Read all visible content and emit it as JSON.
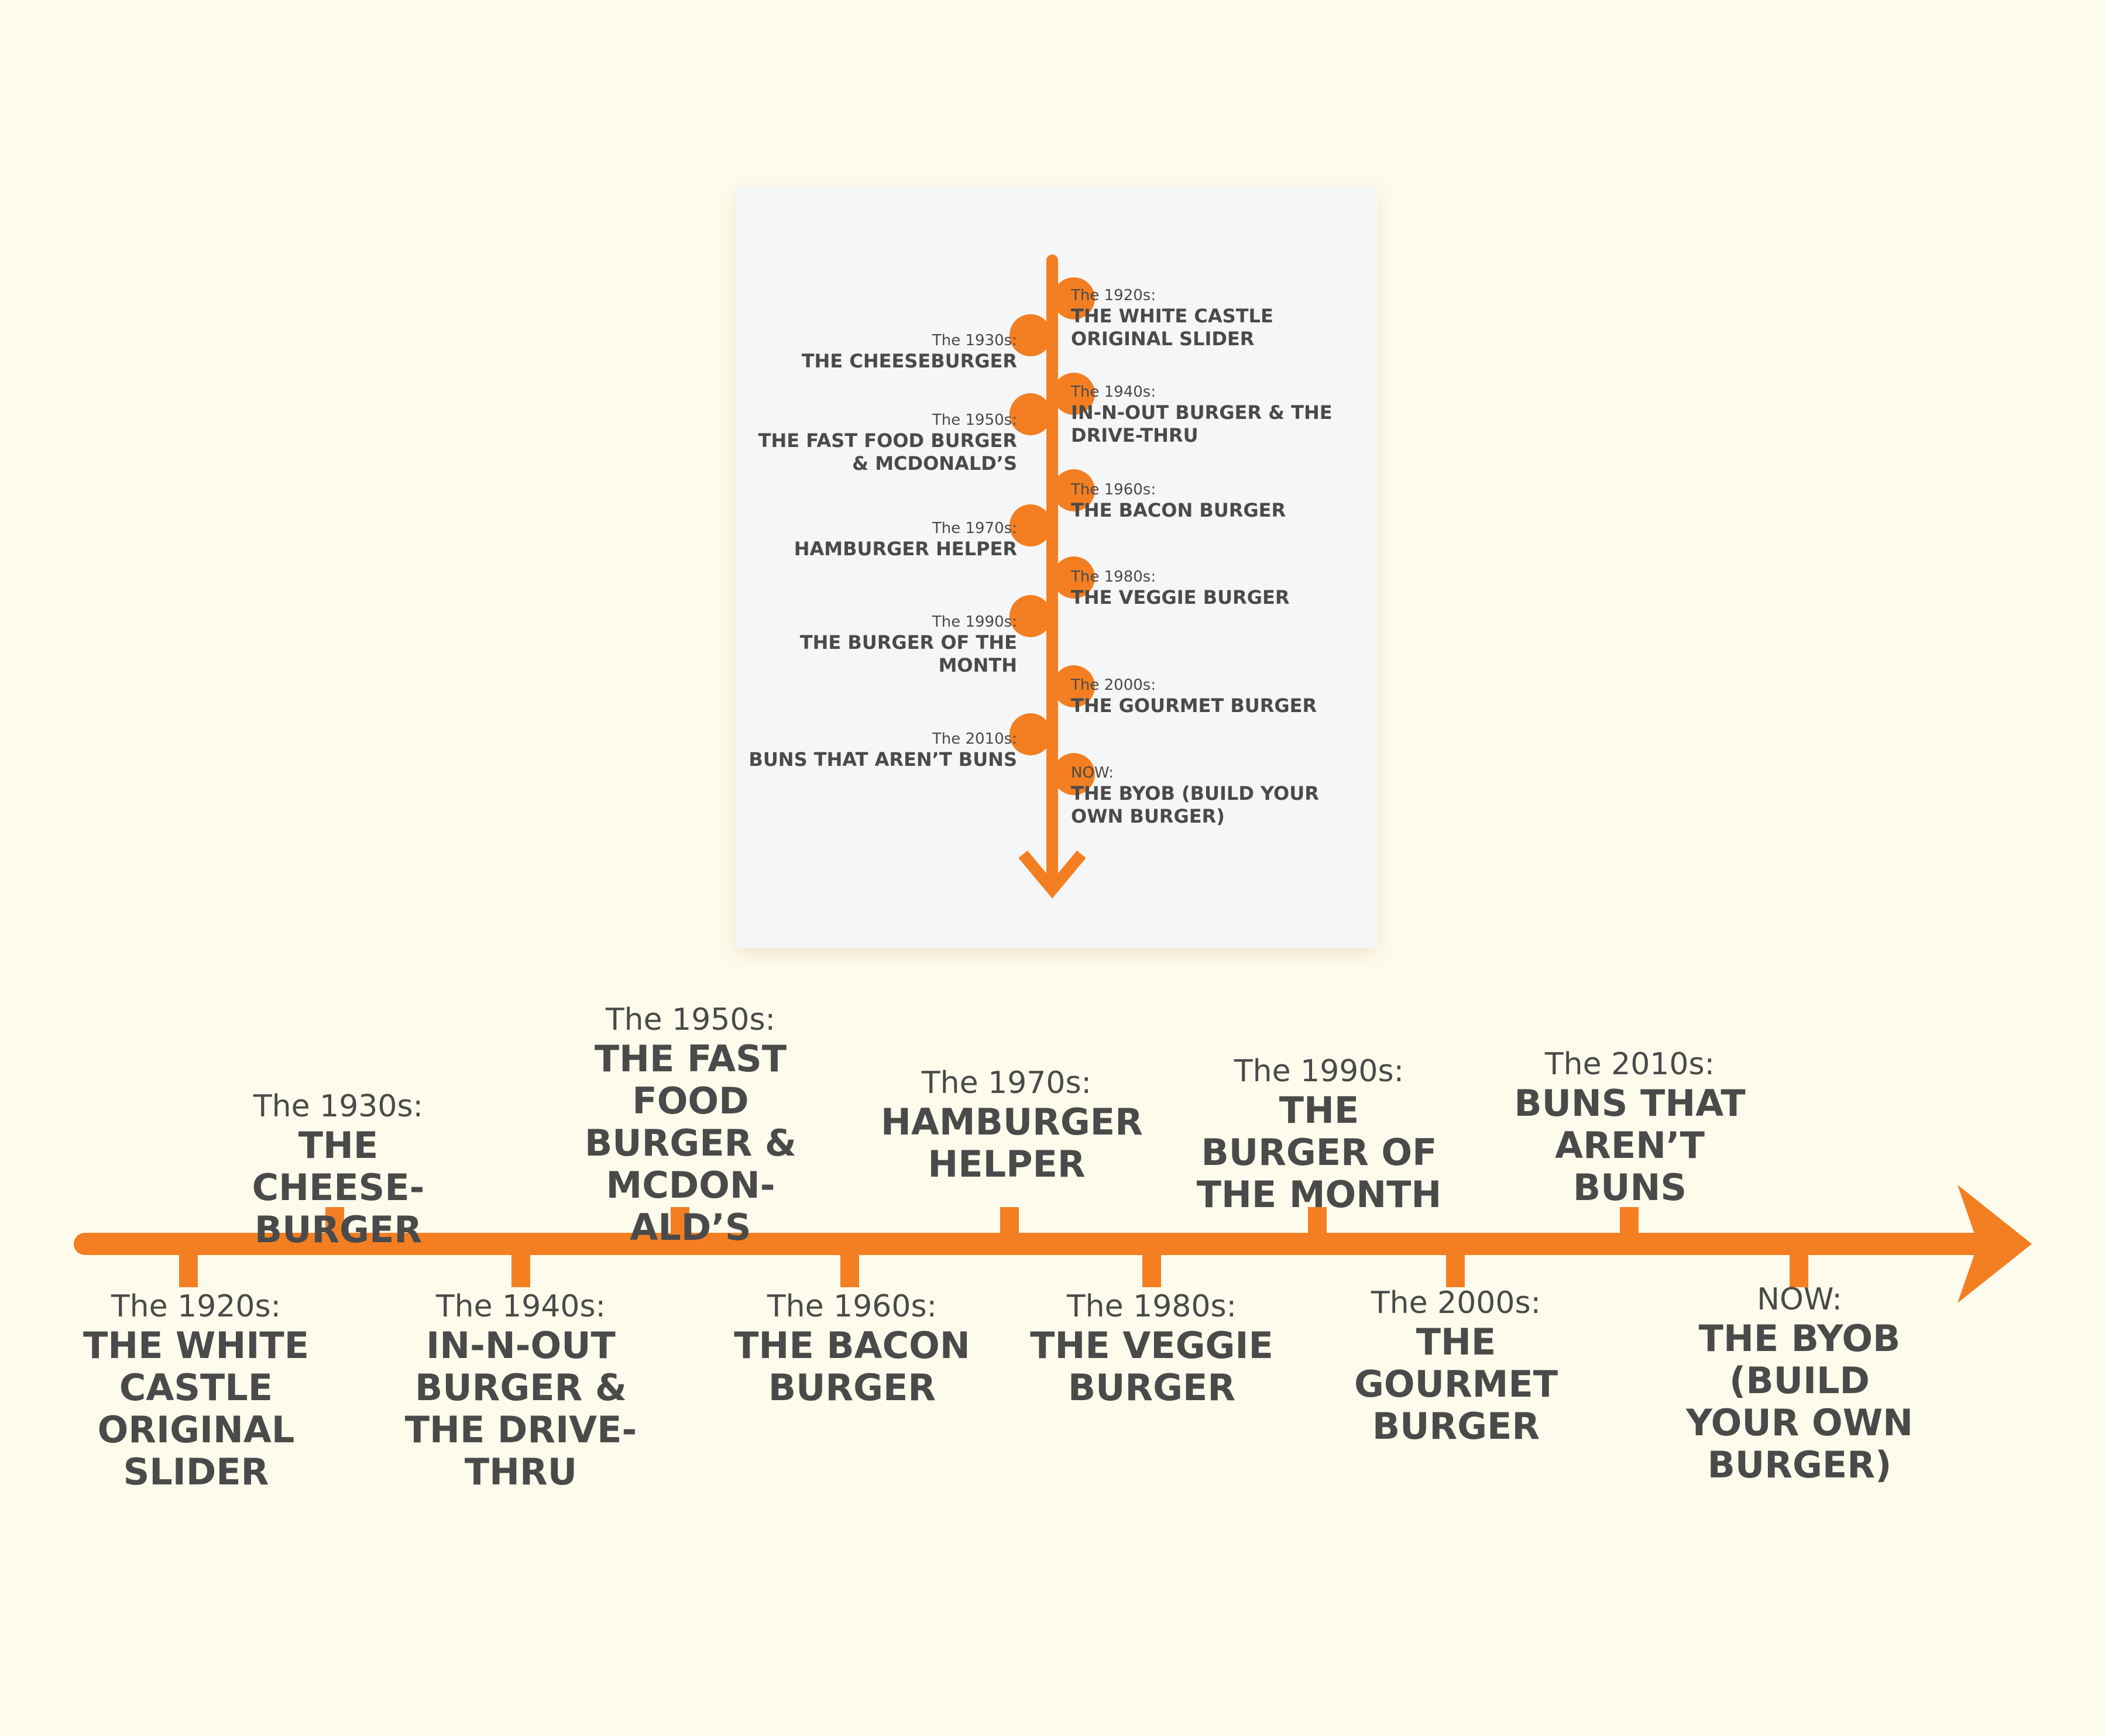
{
  "colors": {
    "accent": "#f37f22",
    "text": "#4a4a4a",
    "background": "#fdfbec",
    "card": "#f5f6f7"
  },
  "card_timeline": {
    "left": [
      {
        "era": "The 1930s:",
        "title": "THE CHEESEBURGER"
      },
      {
        "era": "The 1950s:",
        "title": "THE FAST FOOD BURGER & MCDONALD’S"
      },
      {
        "era": "The 1970s:",
        "title": "HAMBURGER HELPER"
      },
      {
        "era": "The 1990s:",
        "title": "THE BURGER OF THE MONTH"
      },
      {
        "era": "The 2010s:",
        "title": "BUNS THAT AREN’T BUNS"
      }
    ],
    "right": [
      {
        "era": "The 1920s:",
        "title": "THE WHITE CASTLE ORIGINAL SLIDER"
      },
      {
        "era": "The 1940s:",
        "title": "IN-N-OUT BURGER & THE DRIVE-THRU"
      },
      {
        "era": "The 1960s:",
        "title": "THE BACON BURGER"
      },
      {
        "era": "The 1980s:",
        "title": "THE VEGGIE BURGER"
      },
      {
        "era": "The 2000s:",
        "title": "THE GOURMET BURGER"
      },
      {
        "era": "NOW:",
        "title": "THE BYOB (BUILD YOUR OWN BURGER)"
      }
    ]
  },
  "main_timeline": {
    "above": [
      {
        "era": "The 1930s:",
        "title": "THE CHEESE-BURGER"
      },
      {
        "era": "The 1950s:",
        "title": "THE FAST FOOD BURGER & MCDON-ALD’S"
      },
      {
        "era": "The 1970s:",
        "title": "HAMBURGER HELPER"
      },
      {
        "era": "The 1990s:",
        "title": "THE BURGER OF THE MONTH"
      },
      {
        "era": "The 2010s:",
        "title": "BUNS THAT AREN’T BUNS"
      }
    ],
    "below": [
      {
        "era": "The 1920s:",
        "title": "THE WHITE CASTLE ORIGINAL SLIDER"
      },
      {
        "era": "The 1940s:",
        "title": "IN-N-OUT BURGER & THE DRIVE-THRU"
      },
      {
        "era": "The 1960s:",
        "title": "THE BACON BURGER"
      },
      {
        "era": "The 1980s:",
        "title": "THE VEGGIE BURGER"
      },
      {
        "era": "The 2000s:",
        "title": "THE GOURMET BURGER"
      },
      {
        "era": "NOW:",
        "title": "THE BYOB (BUILD YOUR OWN BURGER)"
      }
    ]
  }
}
